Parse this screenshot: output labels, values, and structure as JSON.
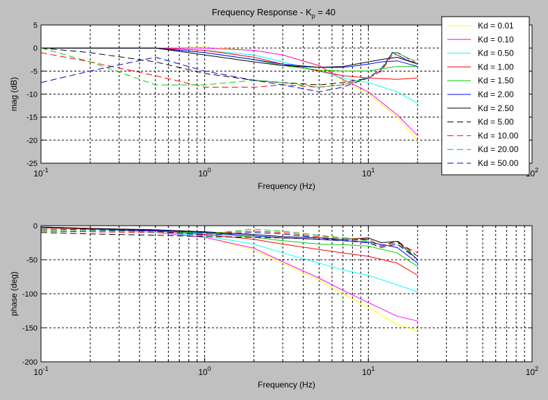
{
  "figure": {
    "title_prefix": "Frequency Response - K",
    "title_sub": "p",
    "title_suffix": " = 40"
  },
  "chart_data": [
    {
      "type": "line",
      "id": "magnitude",
      "xscale": "log",
      "xlim": [
        0.1,
        100
      ],
      "ylim": [
        -25,
        5
      ],
      "yticks": [
        -25,
        -20,
        -15,
        -10,
        -5,
        0,
        5
      ],
      "xticks": [
        0.1,
        1,
        10,
        100
      ],
      "xtick_labels": [
        {
          "base": "10",
          "exp": "-1"
        },
        {
          "base": "10",
          "exp": "0"
        },
        {
          "base": "10",
          "exp": "1"
        },
        {
          "base": "10",
          "exp": "2"
        }
      ],
      "xlabel": "Frequency (Hz)",
      "ylabel": "mag (dB)",
      "grid": true,
      "legend": "top-right",
      "series": [
        {
          "name": "Kd = 0.01",
          "color": "#ffff00",
          "dash": false,
          "x": [
            0.1,
            0.2,
            0.5,
            1,
            2,
            3,
            5,
            7,
            10,
            15,
            20
          ],
          "y": [
            0,
            0,
            0,
            0.2,
            -0.5,
            -1.5,
            -4,
            -7,
            -10,
            -15,
            -20
          ]
        },
        {
          "name": "Kd = 0.10",
          "color": "#ff00ff",
          "dash": false,
          "x": [
            0.1,
            0.2,
            0.5,
            1,
            2,
            3,
            5,
            7,
            10,
            15,
            20
          ],
          "y": [
            0,
            0,
            0,
            0,
            -0.5,
            -1.5,
            -3.8,
            -6.8,
            -9.5,
            -14.5,
            -19
          ]
        },
        {
          "name": "Kd = 0.50",
          "color": "#00ffff",
          "dash": false,
          "x": [
            0.1,
            0.2,
            0.5,
            1,
            2,
            3,
            5,
            7,
            10,
            15,
            20
          ],
          "y": [
            0,
            0,
            0,
            -0.5,
            -1.5,
            -3,
            -5,
            -6.5,
            -7.5,
            -9.5,
            -12
          ]
        },
        {
          "name": "Kd = 1.00",
          "color": "#ff0000",
          "dash": false,
          "x": [
            0.1,
            0.2,
            0.5,
            1,
            2,
            3,
            5,
            7,
            10,
            15,
            20
          ],
          "y": [
            0,
            0,
            0,
            -0.5,
            -2,
            -3.5,
            -5,
            -6,
            -6.5,
            -6.8,
            -6.5
          ]
        },
        {
          "name": "Kd = 1.50",
          "color": "#00cc00",
          "dash": false,
          "x": [
            0.1,
            0.2,
            0.5,
            1,
            2,
            3,
            5,
            7,
            10,
            12,
            15,
            20
          ],
          "y": [
            0,
            0,
            0,
            -1,
            -2.5,
            -3.8,
            -4.8,
            -5,
            -5,
            -4.5,
            -4,
            -4
          ]
        },
        {
          "name": "Kd = 2.00",
          "color": "#0000ff",
          "dash": false,
          "x": [
            0.1,
            0.2,
            0.5,
            1,
            2,
            3,
            5,
            7,
            10,
            12,
            15,
            20
          ],
          "y": [
            0,
            0,
            0,
            -1,
            -2.5,
            -3.5,
            -4.2,
            -4.2,
            -3.5,
            -3,
            -2.8,
            -4
          ]
        },
        {
          "name": "Kd = 2.50",
          "color": "#000000",
          "dash": false,
          "x": [
            0.1,
            0.2,
            0.5,
            1,
            2,
            3,
            5,
            7,
            10,
            12,
            15,
            20
          ],
          "y": [
            0,
            0,
            0,
            -1.5,
            -3,
            -3.8,
            -4.2,
            -4,
            -3,
            -2.5,
            -2,
            -3.5
          ]
        },
        {
          "name": "Kd = 5.00",
          "color": "#000000",
          "dash": true,
          "x": [
            0.1,
            0.2,
            0.5,
            1,
            2,
            3,
            5,
            7,
            10,
            12,
            14,
            15,
            17,
            20
          ],
          "y": [
            0,
            -1,
            -3,
            -5.5,
            -7,
            -7.5,
            -8,
            -7.5,
            -6.5,
            -5,
            -1,
            -1,
            -2,
            -3.5
          ]
        },
        {
          "name": "Kd = 10.00",
          "color": "#ff0000",
          "dash": true,
          "x": [
            0.1,
            0.2,
            0.5,
            1,
            2,
            3,
            5,
            7,
            10,
            12,
            14,
            15,
            17,
            20
          ],
          "y": [
            -1,
            -3,
            -6,
            -8.5,
            -8.5,
            -8,
            -8.5,
            -8,
            -6.5,
            -5,
            -1.5,
            -1.5,
            -2.5,
            -3.5
          ]
        },
        {
          "name": "Kd = 20.00",
          "color": "#00cc00",
          "dash": true,
          "x": [
            0.1,
            0.2,
            0.5,
            1,
            2,
            3,
            5,
            7,
            10,
            12,
            14,
            15,
            17,
            20
          ],
          "y": [
            0,
            -3,
            -8,
            -8,
            -7,
            -7.5,
            -8.5,
            -8,
            -6.5,
            -4.5,
            -1,
            -1,
            -2,
            -3
          ]
        },
        {
          "name": "Kd = 50.00",
          "color": "#0000cc",
          "dash": true,
          "x": [
            0.1,
            0.2,
            0.5,
            1,
            2,
            3,
            5,
            7,
            10,
            12,
            14,
            15,
            17,
            20
          ],
          "y": [
            -7.5,
            -5,
            -2,
            -5,
            -7,
            -8,
            -9.5,
            -8.5,
            -6.5,
            -4.5,
            -1,
            -1.5,
            -2.5,
            -3.5
          ]
        }
      ]
    },
    {
      "type": "line",
      "id": "phase",
      "xscale": "log",
      "xlim": [
        0.1,
        100
      ],
      "ylim": [
        -200,
        0
      ],
      "yticks": [
        -200,
        -150,
        -100,
        -50,
        0
      ],
      "xticks": [
        0.1,
        1,
        10,
        100
      ],
      "xtick_labels": [
        {
          "base": "10",
          "exp": "-1"
        },
        {
          "base": "10",
          "exp": "0"
        },
        {
          "base": "10",
          "exp": "1"
        },
        {
          "base": "10",
          "exp": "2"
        }
      ],
      "xlabel": "Frequency (Hz)",
      "ylabel": "phase (deg)",
      "grid": true,
      "series": [
        {
          "name": "Kd = 0.01",
          "color": "#ffff00",
          "dash": false,
          "x": [
            0.1,
            0.2,
            0.5,
            1,
            2,
            3,
            5,
            7,
            10,
            15,
            20
          ],
          "y": [
            -3,
            -5,
            -10,
            -17,
            -35,
            -55,
            -80,
            -100,
            -120,
            -145,
            -155
          ]
        },
        {
          "name": "Kd = 0.10",
          "color": "#ff00ff",
          "dash": false,
          "x": [
            0.1,
            0.2,
            0.5,
            1,
            2,
            3,
            5,
            7,
            10,
            15,
            20
          ],
          "y": [
            -3,
            -5,
            -10,
            -17,
            -33,
            -53,
            -77,
            -95,
            -113,
            -133,
            -140
          ]
        },
        {
          "name": "Kd = 0.50",
          "color": "#00ffff",
          "dash": false,
          "x": [
            0.1,
            0.2,
            0.5,
            1,
            2,
            3,
            5,
            7,
            10,
            15,
            20
          ],
          "y": [
            -3,
            -5,
            -10,
            -15,
            -27,
            -40,
            -55,
            -65,
            -73,
            -87,
            -97
          ]
        },
        {
          "name": "Kd = 1.00",
          "color": "#ff0000",
          "dash": false,
          "x": [
            0.1,
            0.2,
            0.5,
            1,
            2,
            3,
            5,
            7,
            10,
            15,
            20
          ],
          "y": [
            -3,
            -5,
            -8,
            -13,
            -20,
            -27,
            -35,
            -40,
            -45,
            -55,
            -73
          ]
        },
        {
          "name": "Kd = 1.50",
          "color": "#00cc00",
          "dash": false,
          "x": [
            0.1,
            0.2,
            0.5,
            1,
            2,
            3,
            5,
            7,
            10,
            15,
            20
          ],
          "y": [
            -2,
            -4,
            -7,
            -11,
            -17,
            -22,
            -27,
            -28,
            -30,
            -40,
            -60
          ]
        },
        {
          "name": "Kd = 2.00",
          "color": "#0000ff",
          "dash": false,
          "x": [
            0.1,
            0.2,
            0.5,
            1,
            2,
            3,
            5,
            7,
            10,
            15,
            20
          ],
          "y": [
            -2,
            -4,
            -7,
            -10,
            -15,
            -18,
            -20,
            -22,
            -24,
            -32,
            -55
          ]
        },
        {
          "name": "Kd = 2.50",
          "color": "#000000",
          "dash": false,
          "x": [
            0.1,
            0.2,
            0.5,
            1,
            2,
            3,
            5,
            7,
            10,
            12,
            15,
            20
          ],
          "y": [
            -2,
            -4,
            -6,
            -9,
            -13,
            -16,
            -18,
            -20,
            -18,
            -25,
            -23,
            -50
          ]
        },
        {
          "name": "Kd = 5.00",
          "color": "#000000",
          "dash": true,
          "x": [
            0.1,
            0.2,
            0.5,
            1,
            2,
            3,
            5,
            7,
            10,
            12,
            15,
            20
          ],
          "y": [
            -10,
            -12,
            -14,
            -16,
            -17,
            -18,
            -20,
            -22,
            -20,
            -30,
            -22,
            -45
          ]
        },
        {
          "name": "Kd = 10.00",
          "color": "#ff0000",
          "dash": true,
          "x": [
            0.1,
            0.2,
            0.5,
            1,
            2,
            3,
            5,
            7,
            10,
            12,
            15,
            20
          ],
          "y": [
            -8,
            -9,
            -10,
            -12,
            -8,
            -10,
            -16,
            -18,
            -20,
            -30,
            -25,
            -40
          ]
        },
        {
          "name": "Kd = 20.00",
          "color": "#00cc00",
          "dash": true,
          "x": [
            0.1,
            0.2,
            0.5,
            1,
            2,
            3,
            5,
            7,
            10,
            12,
            15,
            20
          ],
          "y": [
            -7,
            -8,
            -8,
            -12,
            -5,
            -8,
            -14,
            -18,
            -22,
            -32,
            -27,
            -45
          ]
        },
        {
          "name": "Kd = 50.00",
          "color": "#0000cc",
          "dash": true,
          "x": [
            0.1,
            0.2,
            0.5,
            1,
            2,
            3,
            5,
            7,
            10,
            12,
            15,
            20
          ],
          "y": [
            -5,
            -6,
            -8,
            -14,
            -10,
            -12,
            -18,
            -22,
            -25,
            -32,
            -27,
            -50
          ]
        }
      ]
    }
  ]
}
